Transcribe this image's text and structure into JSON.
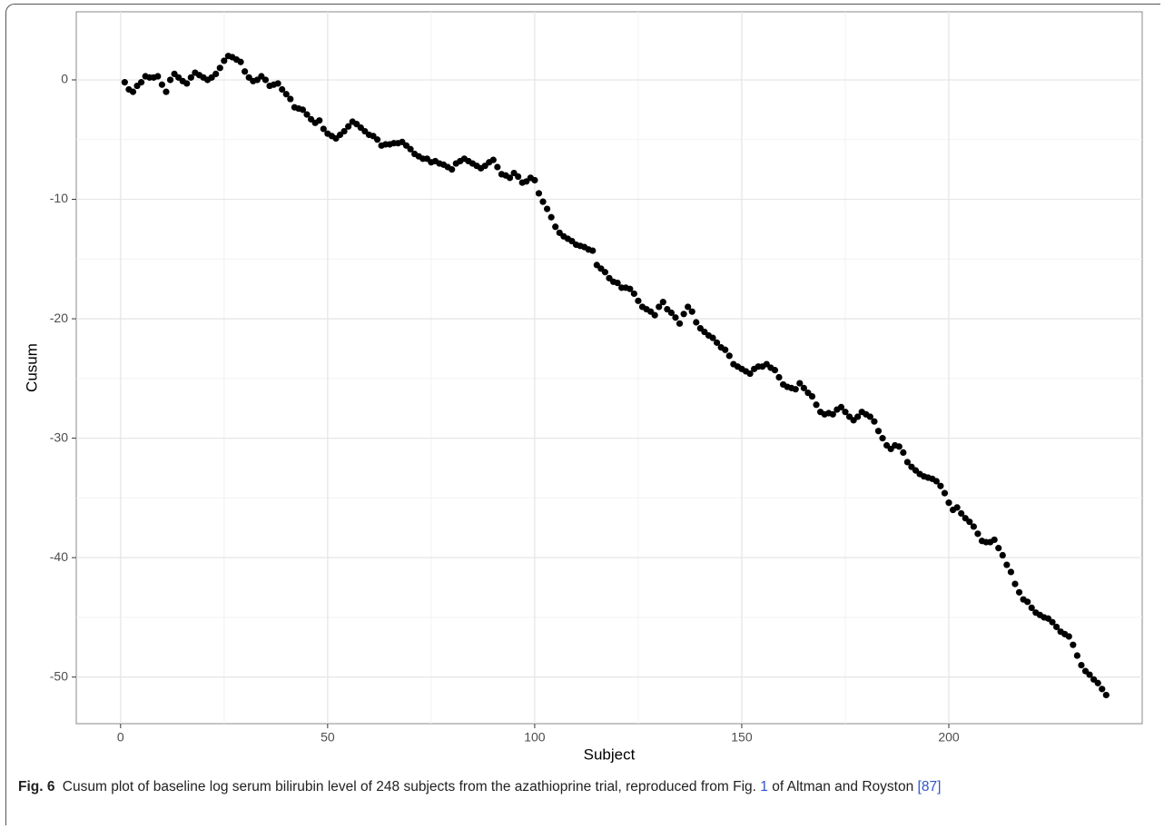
{
  "chart_data": {
    "type": "scatter",
    "xlabel": "Subject",
    "ylabel": "Cusum",
    "xlim": [
      -10.7,
      246.7
    ],
    "ylim": [
      -53.9,
      5.7
    ],
    "xticks": [
      0,
      50,
      100,
      150,
      200
    ],
    "yticks": [
      -50,
      -40,
      -30,
      -20,
      -10,
      0
    ],
    "grid": true,
    "series": [
      {
        "color": "#000000",
        "x": [
          1,
          2,
          3,
          4,
          5,
          6,
          7,
          8,
          9,
          10,
          11,
          12,
          13,
          14,
          15,
          16,
          17,
          18,
          19,
          20,
          21,
          22,
          23,
          24,
          25,
          26,
          27,
          28,
          29,
          30,
          31,
          32,
          33,
          34,
          35,
          36,
          37,
          38,
          39,
          40,
          41,
          42,
          43,
          44,
          45,
          46,
          47,
          48,
          49,
          50,
          51,
          52,
          53,
          54,
          55,
          56,
          57,
          58,
          59,
          60,
          61,
          62,
          63,
          64,
          65,
          66,
          67,
          68,
          69,
          70,
          71,
          72,
          73,
          74,
          75,
          76,
          77,
          78,
          79,
          80,
          81,
          82,
          83,
          84,
          85,
          86,
          87,
          88,
          89,
          90,
          91,
          92,
          93,
          94,
          95,
          96,
          97,
          98,
          99,
          100,
          101,
          102,
          103,
          104,
          105,
          106,
          107,
          108,
          109,
          110,
          111,
          112,
          113,
          114,
          115,
          116,
          117,
          118,
          119,
          120,
          121,
          122,
          123,
          124,
          125,
          126,
          127,
          128,
          129,
          130,
          131,
          132,
          133,
          134,
          135,
          136,
          137,
          138,
          139,
          140,
          141,
          142,
          143,
          144,
          145,
          146,
          147,
          148,
          149,
          150,
          151,
          152,
          153,
          154,
          155,
          156,
          157,
          158,
          159,
          160,
          161,
          162,
          163,
          164,
          165,
          166,
          167,
          168,
          169,
          170,
          171,
          172,
          173,
          174,
          175,
          176,
          177,
          178,
          179,
          180,
          181,
          182,
          183,
          184,
          185,
          186,
          187,
          188,
          189,
          190,
          191,
          192,
          193,
          194,
          195,
          196,
          197,
          198,
          199,
          200,
          201,
          202,
          203,
          204,
          205,
          206,
          207,
          208,
          209,
          210,
          211,
          212,
          213,
          214,
          215,
          216,
          217,
          218,
          219,
          220,
          221,
          222,
          223,
          224,
          225,
          226,
          227,
          228,
          229,
          230,
          231,
          232,
          233,
          234,
          235,
          236,
          237,
          238
        ],
        "values": [
          -0.2,
          -0.8,
          -1.0,
          -0.5,
          -0.2,
          0.3,
          0.2,
          0.2,
          0.3,
          -0.4,
          -1.0,
          0.0,
          0.5,
          0.2,
          -0.1,
          -0.3,
          0.2,
          0.6,
          0.4,
          0.2,
          0.0,
          0.2,
          0.5,
          1.0,
          1.6,
          2.0,
          1.9,
          1.7,
          1.5,
          0.7,
          0.2,
          -0.1,
          0.0,
          0.3,
          0.0,
          -0.5,
          -0.4,
          -0.3,
          -0.8,
          -1.2,
          -1.6,
          -2.3,
          -2.4,
          -2.5,
          -2.9,
          -3.3,
          -3.6,
          -3.4,
          -4.1,
          -4.5,
          -4.7,
          -4.9,
          -4.6,
          -4.3,
          -3.9,
          -3.5,
          -3.7,
          -4.0,
          -4.3,
          -4.6,
          -4.7,
          -5.0,
          -5.5,
          -5.4,
          -5.4,
          -5.3,
          -5.3,
          -5.2,
          -5.5,
          -5.8,
          -6.2,
          -6.4,
          -6.6,
          -6.6,
          -6.9,
          -6.8,
          -7.0,
          -7.1,
          -7.3,
          -7.5,
          -7.0,
          -6.8,
          -6.6,
          -6.8,
          -7.0,
          -7.2,
          -7.4,
          -7.2,
          -6.9,
          -6.7,
          -7.3,
          -7.9,
          -8.0,
          -8.2,
          -7.8,
          -8.1,
          -8.6,
          -8.5,
          -8.2,
          -8.4,
          -9.5,
          -10.2,
          -10.8,
          -11.5,
          -12.3,
          -12.8,
          -13.1,
          -13.3,
          -13.5,
          -13.8,
          -13.9,
          -14.0,
          -14.2,
          -14.3,
          -15.5,
          -15.8,
          -16.1,
          -16.6,
          -16.9,
          -17.0,
          -17.4,
          -17.4,
          -17.5,
          -17.9,
          -18.5,
          -19.0,
          -19.2,
          -19.4,
          -19.7,
          -19.0,
          -18.6,
          -19.2,
          -19.5,
          -19.9,
          -20.4,
          -19.6,
          -19.0,
          -19.4,
          -20.3,
          -20.8,
          -21.1,
          -21.4,
          -21.6,
          -22.0,
          -22.4,
          -22.6,
          -23.1,
          -23.8,
          -24.0,
          -24.2,
          -24.4,
          -24.6,
          -24.2,
          -24.0,
          -24.0,
          -23.8,
          -24.1,
          -24.3,
          -24.9,
          -25.5,
          -25.7,
          -25.8,
          -25.9,
          -25.4,
          -25.8,
          -26.2,
          -26.5,
          -27.2,
          -27.8,
          -28.0,
          -27.9,
          -28.0,
          -27.6,
          -27.4,
          -27.8,
          -28.2,
          -28.5,
          -28.2,
          -27.8,
          -28.0,
          -28.2,
          -28.6,
          -29.4,
          -30.0,
          -30.6,
          -30.9,
          -30.6,
          -30.7,
          -31.2,
          -32.0,
          -32.4,
          -32.7,
          -33.0,
          -33.2,
          -33.3,
          -33.4,
          -33.6,
          -34.0,
          -34.6,
          -35.4,
          -36.0,
          -35.8,
          -36.3,
          -36.7,
          -37.0,
          -37.4,
          -38.0,
          -38.6,
          -38.7,
          -38.7,
          -38.5,
          -39.2,
          -39.8,
          -40.6,
          -41.2,
          -42.2,
          -42.9,
          -43.5,
          -43.7,
          -44.2,
          -44.6,
          -44.8,
          -45.0,
          -45.1,
          -45.4,
          -45.8,
          -46.2,
          -46.4,
          -46.6,
          -47.3,
          -48.2,
          -49.0,
          -49.5,
          -49.8,
          -50.2,
          -50.5,
          -51.0,
          -51.5
        ]
      }
    ]
  },
  "caption": {
    "label": "Fig. 6",
    "text_1": "Cusum plot of baseline log serum bilirubin level of 248 subjects from the azathioprine trial, reproduced from Fig.",
    "fig_ref": "1",
    "text_2": "of Altman and Royston",
    "citation": "[87]"
  }
}
